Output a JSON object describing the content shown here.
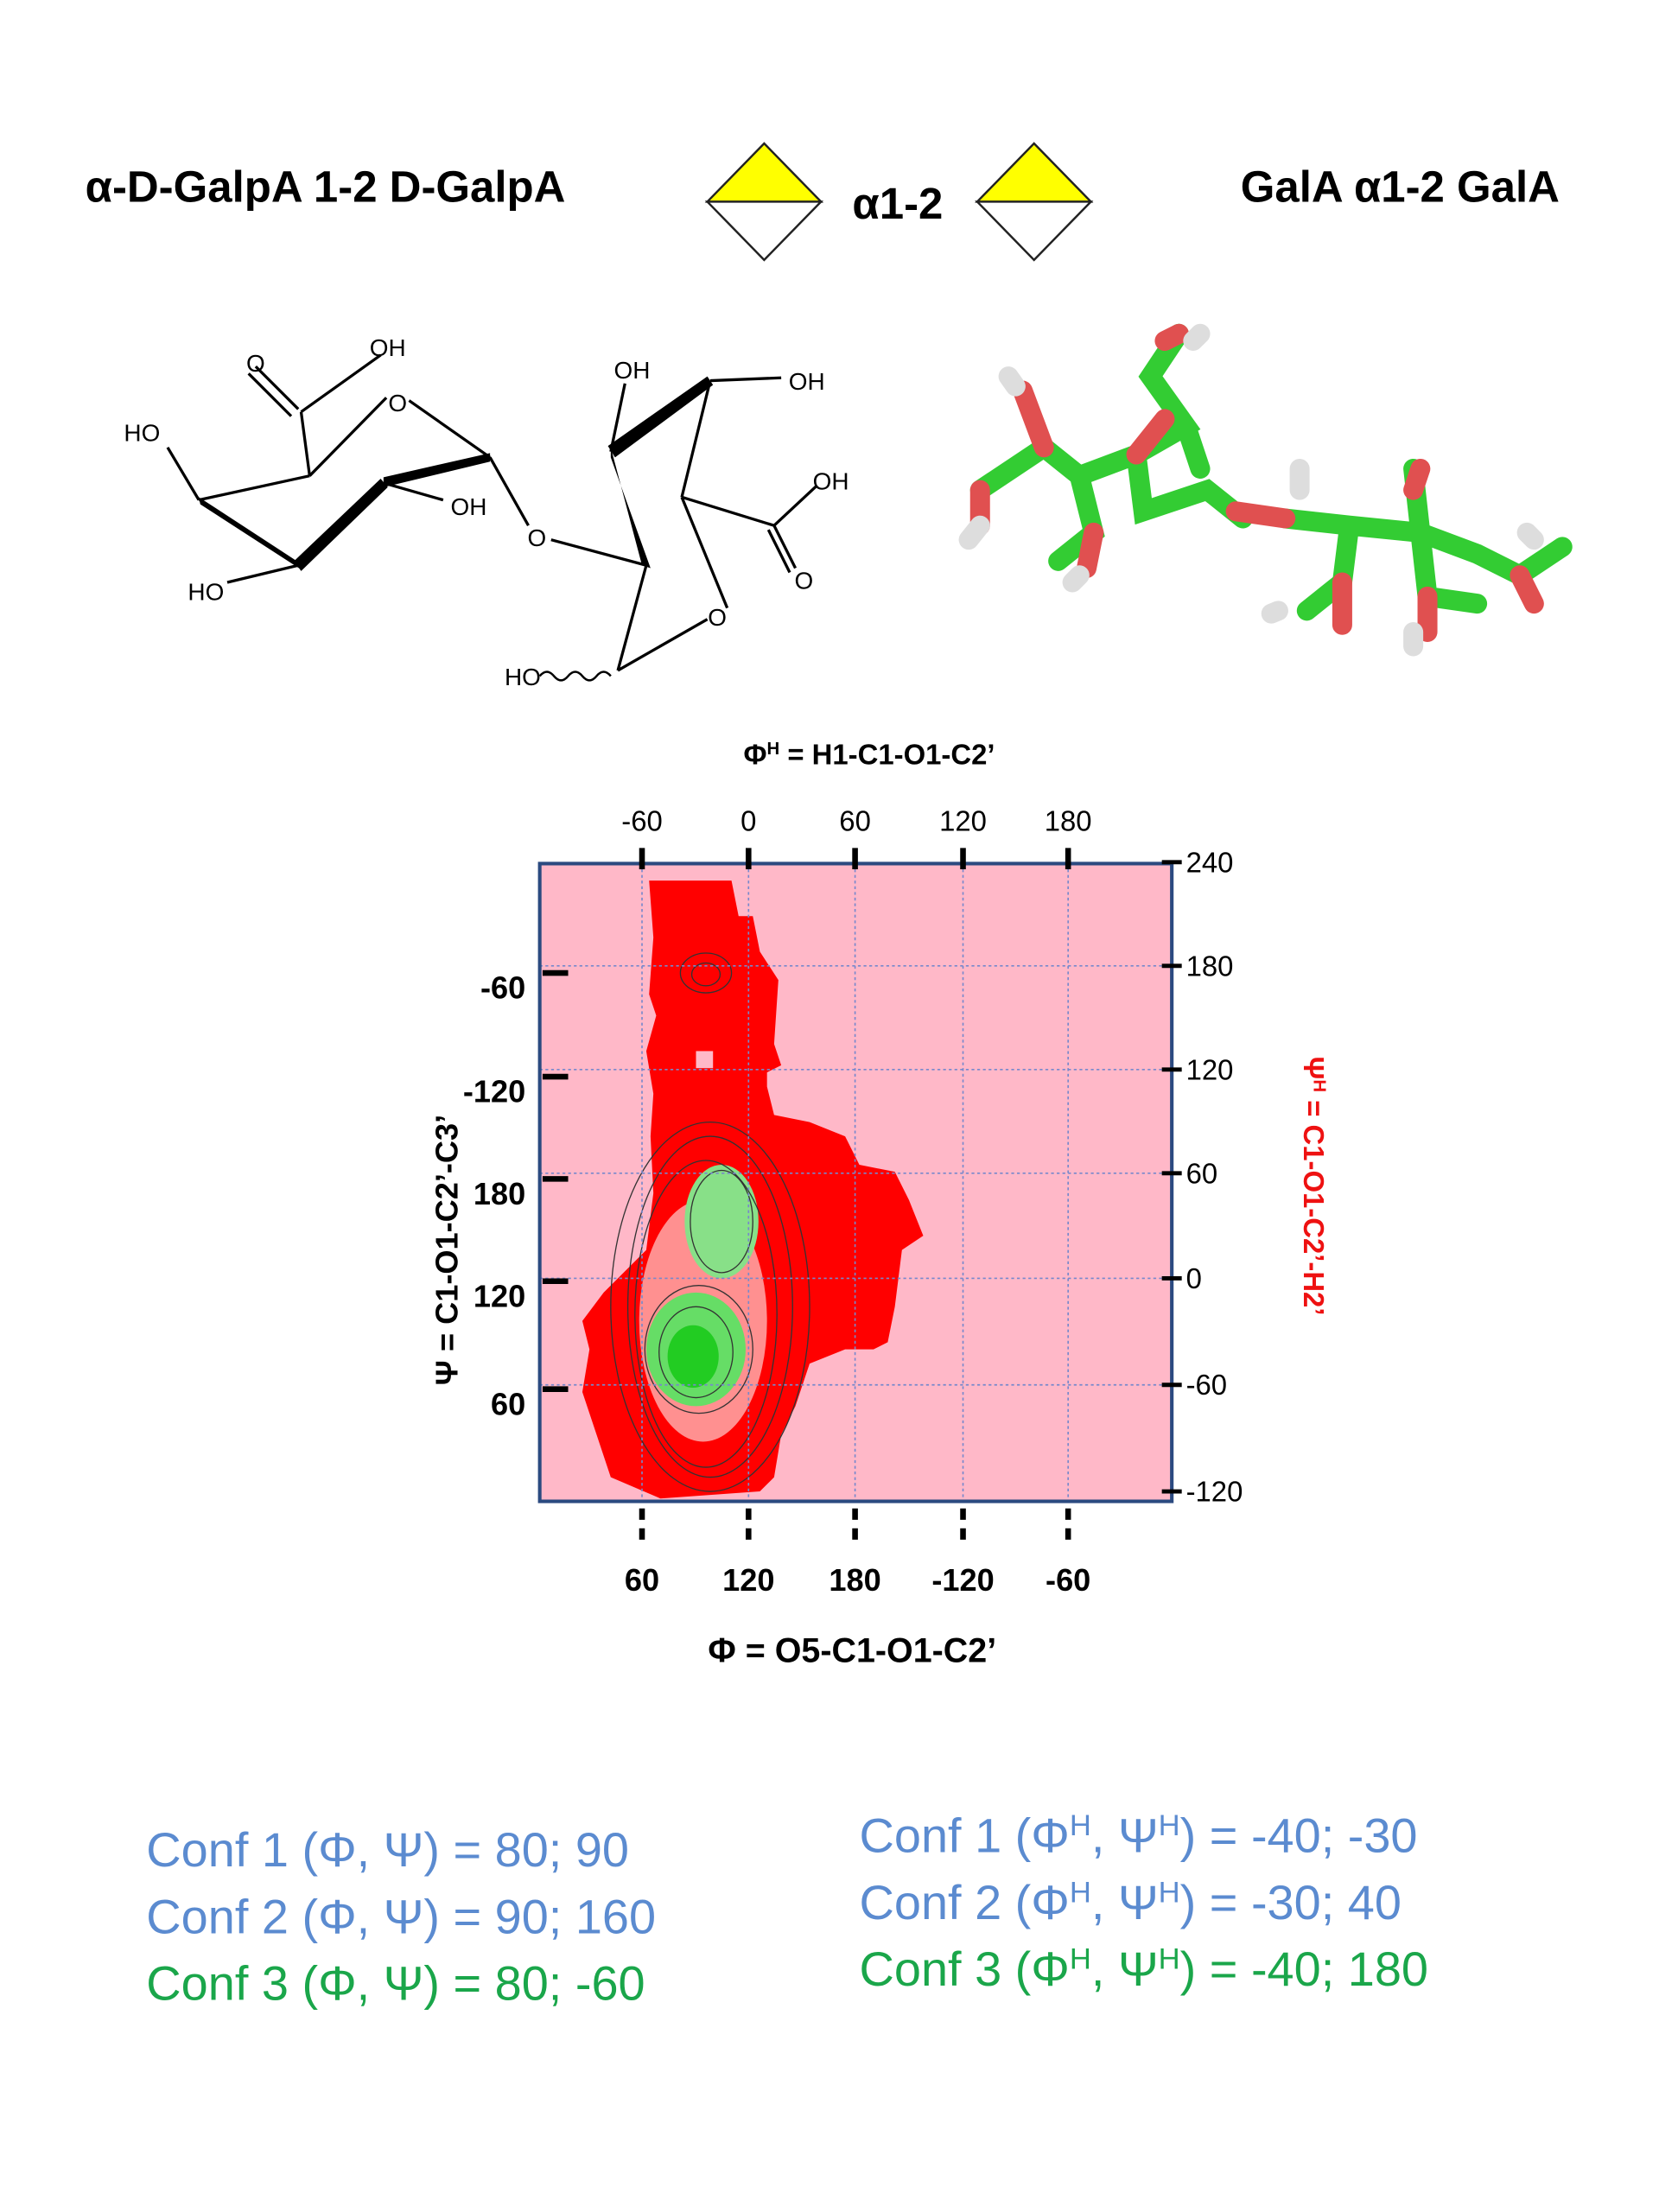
{
  "header": {
    "left_title": "α-D-GalpA 1-2 D-GalpA",
    "linkage": "α1-2",
    "right_title": "GalA α1-2 GalA"
  },
  "structure": {
    "labels": [
      "O",
      "OH",
      "O",
      "HO",
      "OH",
      "HO",
      "O",
      "OH",
      "OH",
      "OH",
      "O",
      "O",
      "HO"
    ]
  },
  "plot": {
    "top_axis_title": [
      "Φ",
      "H",
      " = H1-C1-O1-C2’"
    ],
    "top_ticks": [
      -60,
      0,
      60,
      120,
      180
    ],
    "right_ticks": [
      240,
      180,
      120,
      60,
      0,
      -60,
      -120
    ],
    "left_ticks": [
      -60,
      -120,
      180,
      120,
      60
    ],
    "bottom_ticks": [
      60,
      120,
      180,
      -120,
      -60
    ],
    "left_axis_title": "Ψ = C1-O1-C2’-C3’",
    "right_axis_title": [
      "Ψ",
      "H",
      " = C1-O1-C2’-H2’"
    ],
    "bottom_axis_title": "Φ = O5-C1-O1-C2’"
  },
  "conformations_left": [
    {
      "text": "Conf 1 (Φ, Ψ) = 80; 90",
      "color": "#5b8bd0"
    },
    {
      "text": "Conf 2 (Φ, Ψ) = 90; 160",
      "color": "#5b8bd0"
    },
    {
      "text": "Conf 3 (Φ, Ψ) = 80; -60",
      "color": "#1aa64a"
    }
  ],
  "conformations_right": [
    {
      "parts": [
        "Conf 1 (Φ",
        "H",
        ", Ψ",
        "H",
        ") = -40; -30"
      ],
      "color": "#5b8bd0"
    },
    {
      "parts": [
        "Conf 2 (Φ",
        "H",
        ", Ψ",
        "H",
        ") = -30; 40"
      ],
      "color": "#5b8bd0"
    },
    {
      "parts": [
        "Conf 3 (Φ",
        "H",
        ", Ψ",
        "H",
        ") = -40; 180"
      ],
      "color": "#1aa64a"
    }
  ]
}
